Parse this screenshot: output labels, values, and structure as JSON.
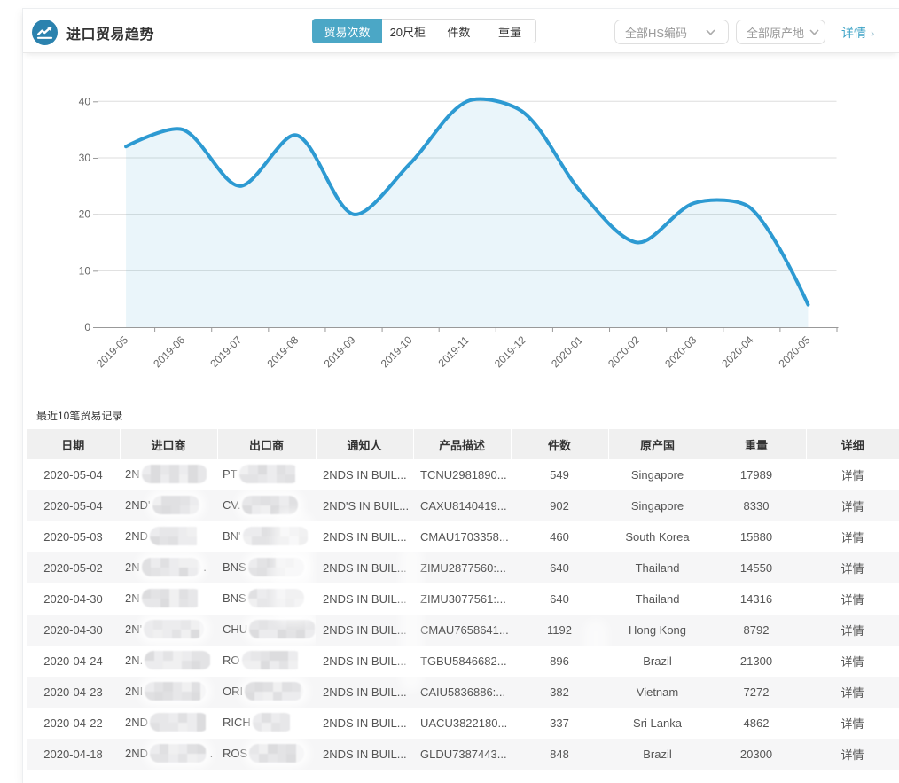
{
  "theme": {
    "accent": "#3EA3C6",
    "tab_active_bg": "#4BA7C6",
    "icon_bg": "#2B82AE",
    "line_color": "#2D9AD2",
    "area_color": "rgba(45,154,210,0.10)",
    "grid_color": "#DDDDDD",
    "axis_color": "#999999",
    "axis_label_color": "#666666"
  },
  "header": {
    "icon": "trend-line-icon",
    "title": "进口贸易趋势",
    "tabs": [
      {
        "label": "贸易次数",
        "active": true
      },
      {
        "label": "20尺柜",
        "active": false
      },
      {
        "label": "件数",
        "active": false
      },
      {
        "label": "重量",
        "active": false
      }
    ],
    "hs_filter": {
      "value": "全部HS编码",
      "icon": "chevron-down-icon"
    },
    "origin_filter": {
      "value": "全部原产地",
      "icon": "chevron-down-icon"
    },
    "detail_link": {
      "label": "详情",
      "arrow": "›"
    }
  },
  "chart_data": {
    "type": "area",
    "title": "",
    "xlabel": "",
    "ylabel": "",
    "x": [
      "2019-05",
      "2019-06",
      "2019-07",
      "2019-08",
      "2019-09",
      "2019-10",
      "2019-11",
      "2019-12",
      "2020-01",
      "2020-02",
      "2020-03",
      "2020-04",
      "2020-05"
    ],
    "series": [
      {
        "name": "贸易次数",
        "values": [
          32,
          35,
          25,
          34,
          20,
          29,
          40,
          38,
          24,
          15,
          22,
          21,
          4
        ]
      }
    ],
    "ylim": [
      0,
      40
    ],
    "yticks": [
      0,
      10,
      20,
      30,
      40
    ],
    "grid": true,
    "smooth": true,
    "x_label_rotate": 45,
    "legend": "none"
  },
  "table": {
    "title": "最近10笔贸易记录",
    "columns": [
      "日期",
      "进口商",
      "出口商",
      "通知人",
      "产品描述",
      "件数",
      "原产国",
      "重量",
      "详细"
    ],
    "link_label": "详情",
    "rows": [
      {
        "date": "2020-05-04",
        "importer_prefix": "2N",
        "importer_redacted": true,
        "imp_w": 74,
        "exporter_prefix": "PT",
        "exporter_redacted": true,
        "exp_w": 68,
        "notify": "2NDS IN BUIL...",
        "product": "TCNU2981890...",
        "qty": "549",
        "origin": "Singapore",
        "weight": "17989"
      },
      {
        "date": "2020-05-04",
        "importer_prefix": "2ND'",
        "importer_redacted": true,
        "imp_w": 53,
        "exporter_prefix": "CV.",
        "exporter_redacted": true,
        "exp_w": 63,
        "notify": "2ND'S IN BUIL...",
        "product": "CAXU8140419...",
        "qty": "902",
        "origin": "Singapore",
        "weight": "8330"
      },
      {
        "date": "2020-05-03",
        "importer_prefix": "2ND",
        "importer_redacted": true,
        "imp_w": 61,
        "exporter_prefix": "BN'",
        "exporter_redacted": true,
        "exp_w": 74,
        "notify": "2NDS IN BUIL...",
        "product": "CMAU1703358...",
        "qty": "460",
        "origin": "South Korea",
        "weight": "15880"
      },
      {
        "date": "2020-05-02",
        "importer_prefix": "2N",
        "importer_redacted": true,
        "imp_w": 66,
        "importer_suffix": ".",
        "exporter_prefix": "BNS",
        "exporter_redacted": true,
        "exp_w": 63,
        "notify": "2NDS IN BUIL...",
        "product": "ZIMU2877560:...",
        "qty": "640",
        "origin": "Thailand",
        "weight": "14550"
      },
      {
        "date": "2020-04-30",
        "importer_prefix": "2N",
        "importer_redacted": true,
        "imp_w": 69,
        "exporter_prefix": "BNS",
        "exporter_redacted": true,
        "exp_w": 63,
        "notify": "2NDS IN BUIL...",
        "product": "ZIMU3077561:...",
        "qty": "640",
        "origin": "Thailand",
        "weight": "14316"
      },
      {
        "date": "2020-04-30",
        "importer_prefix": "2N'",
        "importer_redacted": true,
        "imp_w": 68,
        "exporter_prefix": "CHU",
        "exporter_redacted": true,
        "exp_w": 75,
        "notify": "2NDS IN BUIL...",
        "product": "CMAU7658641...",
        "qty": "1192",
        "origin": "Hong Kong",
        "weight": "8792"
      },
      {
        "date": "2020-04-24",
        "importer_prefix": "2N.",
        "importer_redacted": true,
        "imp_w": 75,
        "exporter_prefix": "RO",
        "exporter_redacted": true,
        "exp_w": 69,
        "notify": "2NDS IN BUIL...",
        "product": "TGBU5846682...",
        "qty": "896",
        "origin": "Brazil",
        "weight": "21300"
      },
      {
        "date": "2020-04-23",
        "importer_prefix": "2NI",
        "importer_redacted": true,
        "imp_w": 69,
        "exporter_prefix": "ORI",
        "exporter_redacted": true,
        "exp_w": 66,
        "notify": "2NDS IN BUIL...",
        "product": "CAIU5836886:...",
        "qty": "382",
        "origin": "Vietnam",
        "weight": "7272"
      },
      {
        "date": "2020-04-22",
        "importer_prefix": "2ND",
        "importer_redacted": true,
        "imp_w": 67,
        "exporter_prefix": "RICH",
        "exporter_redacted": true,
        "exp_w": 46,
        "notify": "2NDS IN BUIL...",
        "product": "UACU3822180...",
        "qty": "337",
        "origin": "Sri Lanka",
        "weight": "4862"
      },
      {
        "date": "2020-04-18",
        "importer_prefix": "2ND",
        "importer_redacted": true,
        "imp_w": 64,
        "importer_suffix": ".",
        "exporter_prefix": "ROS",
        "exporter_redacted": true,
        "exp_w": 62,
        "notify": "2NDS IN BUIL...",
        "product": "GLDU7387443...",
        "qty": "848",
        "origin": "Brazil",
        "weight": "20300"
      }
    ]
  }
}
